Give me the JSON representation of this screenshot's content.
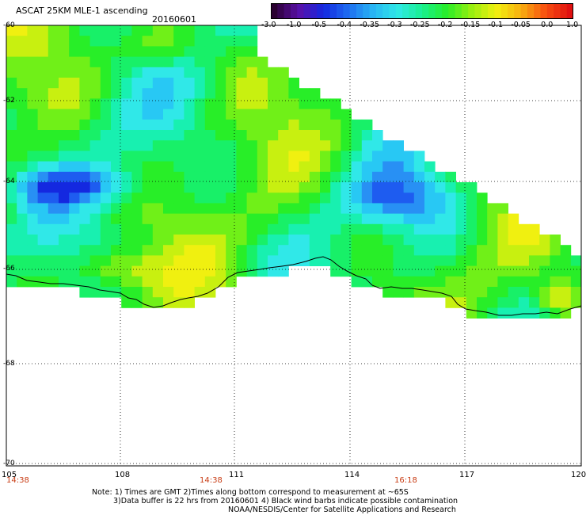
{
  "header": {
    "title": "ASCAT 25KM MLE-1 ascending",
    "date": "20160601"
  },
  "colorbar": {
    "labels": [
      "-3.0",
      "-1.0",
      "-0.5",
      "-0.4",
      "-0.35",
      "-0.3",
      "-0.25",
      "-0.2",
      "-0.15",
      "-0.1",
      "-0.05",
      "0.0",
      "1.0"
    ],
    "colors": [
      "#2a0030",
      "#5a10a8",
      "#1428e0",
      "#1e6cf0",
      "#28b4f4",
      "#30e8e8",
      "#18f090",
      "#28ee28",
      "#98f010",
      "#f0f010",
      "#f8b010",
      "#f85010",
      "#e01010"
    ]
  },
  "map": {
    "lat_labels": [
      "-60",
      "-62",
      "-64",
      "-66",
      "-68",
      "-70"
    ],
    "lon_labels": [
      "105",
      "108",
      "111",
      "114",
      "117",
      "120"
    ],
    "time_labels": [
      "14:38",
      "14:38",
      "16:18"
    ],
    "land_color": "#ffffff",
    "coast_color": "#000000"
  },
  "notes": {
    "line1": "Note: 1) Times are GMT 2)Times along bottom correspond to measurement at ~65S",
    "line2": "3)Data buffer is 22 hrs from 20160601 4) Black wind barbs indicate possible contamination",
    "line3": "NOAA/NESDIS/Center for Satellite Applications and Research"
  }
}
